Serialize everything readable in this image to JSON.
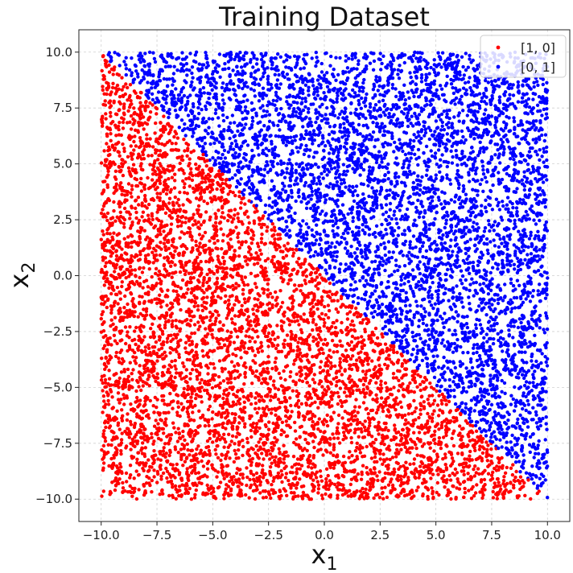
{
  "chart_data": {
    "type": "scatter",
    "title": "Training Dataset",
    "xlabel": "x",
    "xlabel_sub": "1",
    "ylabel": "x",
    "ylabel_sub": "2",
    "xlim": [
      -11,
      11
    ],
    "ylim": [
      -11,
      11
    ],
    "xticks": [
      -10,
      -7.5,
      -5,
      -2.5,
      0,
      2.5,
      5,
      7.5,
      10
    ],
    "yticks": [
      -10,
      -7.5,
      -5,
      -2.5,
      0,
      2.5,
      5,
      7.5,
      10
    ],
    "xtick_labels": [
      "−10.0",
      "−7.5",
      "−5.0",
      "−2.5",
      "0.0",
      "2.5",
      "5.0",
      "7.5",
      "10.0"
    ],
    "ytick_labels": [
      "−10.0",
      "−7.5",
      "−5.0",
      "−2.5",
      "0.0",
      "2.5",
      "5.0",
      "7.5",
      "10.0"
    ],
    "grid": true,
    "legend_position": "top-right",
    "point_distribution": "uniform over the square [-10, 10] x [-10, 10]",
    "decision_rule": "x1 + x2 < 0 -> [1, 0]; otherwise -> [0, 1]",
    "series": [
      {
        "name": "[1, 0]",
        "color": "#ff0000",
        "region": "x1 + x2 < 0"
      },
      {
        "name": "[0, 1]",
        "color": "#0000ff",
        "region": "x1 + x2 >= 0"
      }
    ]
  }
}
